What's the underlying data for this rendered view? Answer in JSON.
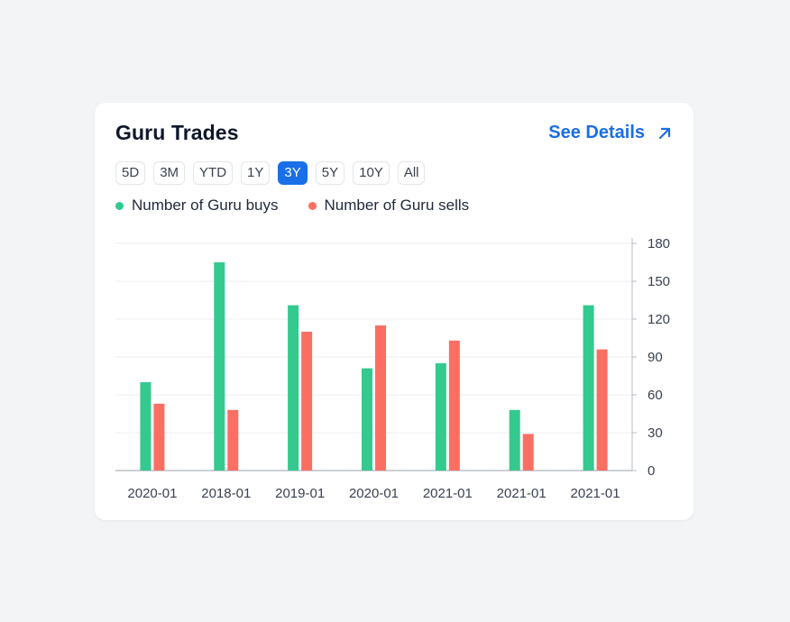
{
  "card": {
    "title": "Guru Trades",
    "see_details_label": "See Details"
  },
  "ranges": [
    {
      "label": "5D",
      "active": false
    },
    {
      "label": "3M",
      "active": false
    },
    {
      "label": "YTD",
      "active": false
    },
    {
      "label": "1Y",
      "active": false
    },
    {
      "label": "3Y",
      "active": true
    },
    {
      "label": "5Y",
      "active": false
    },
    {
      "label": "10Y",
      "active": false
    },
    {
      "label": "All",
      "active": false
    }
  ],
  "colors": {
    "buys": "#34c98e",
    "sells": "#fb6f63",
    "accent": "#1a6ee8"
  },
  "chart_data": {
    "type": "bar",
    "categories": [
      "2020-01",
      "2018-01",
      "2019-01",
      "2020-01",
      "2021-01",
      "2021-01",
      "2021-01"
    ],
    "series": [
      {
        "name": "Number of Guru buys",
        "values": [
          70,
          165,
          131,
          81,
          85,
          48,
          131
        ]
      },
      {
        "name": "Number of Guru sells",
        "values": [
          53,
          48,
          110,
          115,
          103,
          29,
          96
        ]
      }
    ],
    "ylim": [
      0,
      180
    ],
    "yticks": [
      0,
      30,
      60,
      90,
      120,
      150,
      180
    ],
    "yaxis_side": "right",
    "grid": true,
    "legend": "top-left"
  }
}
